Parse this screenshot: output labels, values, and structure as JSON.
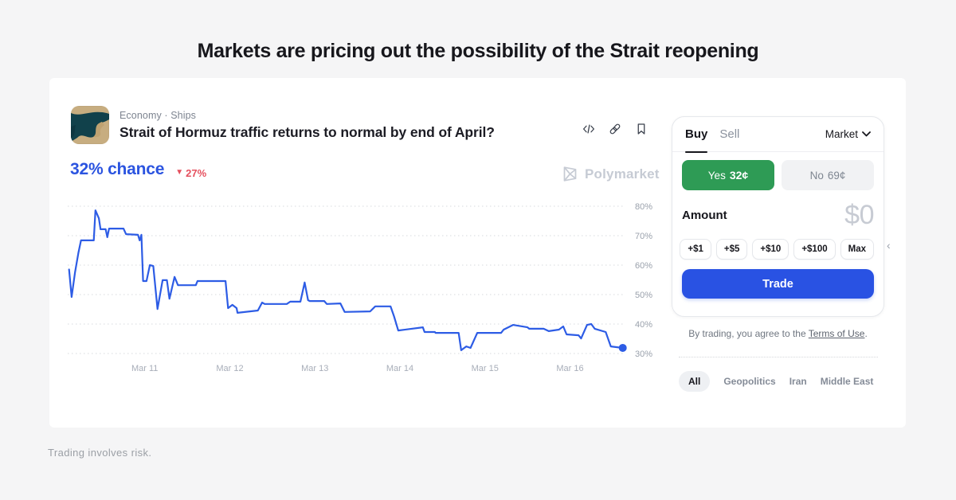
{
  "page": {
    "headline": "Markets are pricing out the possibility of the Strait reopening",
    "footer_disclaimer": "Trading involves risk.",
    "carousel_next_hint": "‹"
  },
  "market": {
    "breadcrumb": "Economy · Ships",
    "title": "Strait of Hormuz traffic returns to normal by end of April?",
    "chance_label": "32% chance",
    "change_direction": "down",
    "change_arrow": "▼",
    "change_label": "27%",
    "watermark_label": "Polymarket",
    "accent_blue": "#2b54e0",
    "negative_red": "#e5505e"
  },
  "chart_data": {
    "type": "line",
    "title": "Yes price history (% chance)",
    "series_name": "Yes",
    "line_color": "#2d5ce5",
    "grid_style": "dotted-horizontal",
    "end_dot": true,
    "x_domain": [
      10.094,
      16.651
    ],
    "ylim": [
      27,
      83
    ],
    "y_ticks": [
      {
        "pct": 80,
        "label": "80%"
      },
      {
        "pct": 70,
        "label": "70%"
      },
      {
        "pct": 60,
        "label": "60%"
      },
      {
        "pct": 50,
        "label": "50%"
      },
      {
        "pct": 40,
        "label": "40%"
      },
      {
        "pct": 30,
        "label": "30%"
      }
    ],
    "x_ticks": [
      {
        "day": 11,
        "label": "Mar 11"
      },
      {
        "day": 12,
        "label": "Mar 12"
      },
      {
        "day": 13,
        "label": "Mar 13"
      },
      {
        "day": 14,
        "label": "Mar 14"
      },
      {
        "day": 15,
        "label": "Mar 15"
      },
      {
        "day": 16,
        "label": "Mar 16"
      }
    ],
    "points": [
      [
        10.11,
        58.5
      ],
      [
        10.14,
        49.2
      ],
      [
        10.18,
        57.6
      ],
      [
        10.22,
        64.3
      ],
      [
        10.25,
        68.4
      ],
      [
        10.4,
        68.4
      ],
      [
        10.42,
        78.6
      ],
      [
        10.46,
        75.9
      ],
      [
        10.48,
        72.2
      ],
      [
        10.54,
        72.2
      ],
      [
        10.56,
        69.5
      ],
      [
        10.58,
        72.4
      ],
      [
        10.75,
        72.4
      ],
      [
        10.78,
        70.5
      ],
      [
        10.92,
        70.3
      ],
      [
        10.94,
        68.4
      ],
      [
        10.96,
        70.3
      ],
      [
        10.98,
        54.6
      ],
      [
        11.02,
        54.6
      ],
      [
        11.06,
        60.0
      ],
      [
        11.1,
        59.7
      ],
      [
        11.15,
        45.1
      ],
      [
        11.21,
        54.9
      ],
      [
        11.26,
        54.9
      ],
      [
        11.29,
        48.6
      ],
      [
        11.35,
        56.0
      ],
      [
        11.39,
        53.2
      ],
      [
        11.6,
        53.2
      ],
      [
        11.62,
        54.6
      ],
      [
        11.95,
        54.6
      ],
      [
        11.98,
        45.4
      ],
      [
        12.03,
        46.5
      ],
      [
        12.08,
        45.4
      ],
      [
        12.09,
        43.8
      ],
      [
        12.33,
        44.6
      ],
      [
        12.38,
        47.3
      ],
      [
        12.41,
        46.8
      ],
      [
        12.67,
        46.8
      ],
      [
        12.71,
        47.6
      ],
      [
        12.83,
        47.6
      ],
      [
        12.88,
        54.1
      ],
      [
        12.92,
        48.1
      ],
      [
        12.94,
        47.8
      ],
      [
        13.11,
        47.8
      ],
      [
        13.14,
        46.8
      ],
      [
        13.3,
        47.0
      ],
      [
        13.35,
        44.1
      ],
      [
        13.65,
        44.3
      ],
      [
        13.71,
        46.0
      ],
      [
        13.89,
        46.0
      ],
      [
        13.93,
        42.7
      ],
      [
        13.98,
        37.8
      ],
      [
        14.27,
        38.9
      ],
      [
        14.29,
        37.3
      ],
      [
        14.41,
        37.3
      ],
      [
        14.42,
        37.0
      ],
      [
        14.69,
        37.0
      ],
      [
        14.72,
        31.1
      ],
      [
        14.78,
        32.4
      ],
      [
        14.83,
        31.9
      ],
      [
        14.91,
        37.0
      ],
      [
        15.19,
        37.0
      ],
      [
        15.22,
        38.1
      ],
      [
        15.33,
        39.7
      ],
      [
        15.5,
        38.9
      ],
      [
        15.52,
        38.4
      ],
      [
        15.69,
        38.4
      ],
      [
        15.75,
        37.6
      ],
      [
        15.87,
        38.1
      ],
      [
        15.92,
        39.2
      ],
      [
        15.96,
        36.5
      ],
      [
        16.1,
        36.2
      ],
      [
        16.13,
        35.1
      ],
      [
        16.2,
        39.7
      ],
      [
        16.25,
        40.0
      ],
      [
        16.29,
        38.4
      ],
      [
        16.42,
        37.3
      ],
      [
        16.48,
        32.4
      ],
      [
        16.62,
        31.9
      ]
    ]
  },
  "trade_panel": {
    "tabs": [
      {
        "label": "Buy",
        "active": true
      },
      {
        "label": "Sell",
        "active": false
      }
    ],
    "order_type": "Market",
    "yes_label": "Yes",
    "yes_price": "32¢",
    "no_label": "No",
    "no_price": "69¢",
    "yes_color": "#2e9b55",
    "amount_label": "Amount",
    "amount_value": "$0",
    "quick_amounts": [
      "+$1",
      "+$5",
      "+$10",
      "+$100",
      "Max"
    ],
    "trade_label": "Trade",
    "trade_color": "#2952e3",
    "terms_prefix": "By trading, you agree to the ",
    "terms_link": "Terms of Use",
    "terms_suffix": "."
  },
  "tags": [
    {
      "label": "All",
      "active": true
    },
    {
      "label": "Geopolitics",
      "active": false
    },
    {
      "label": "Iran",
      "active": false
    },
    {
      "label": "Middle East",
      "active": false
    }
  ]
}
